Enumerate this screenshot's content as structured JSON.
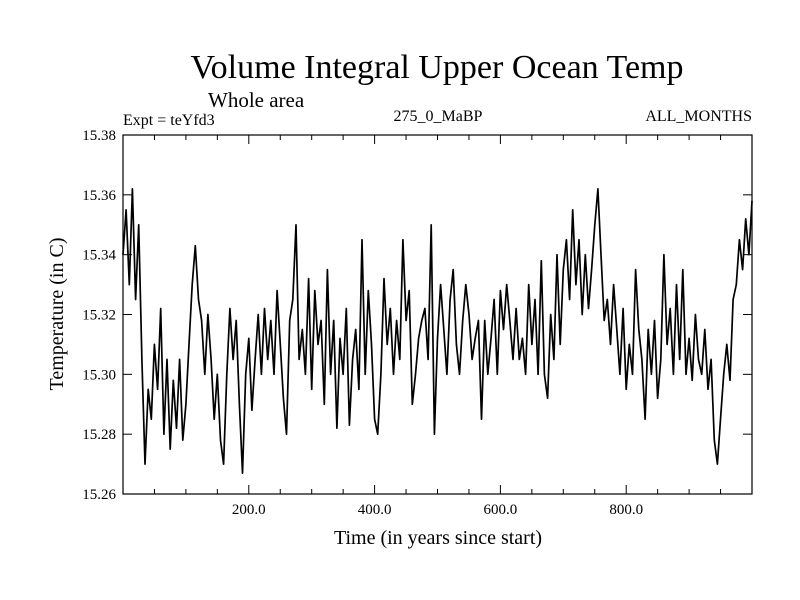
{
  "chart_data": {
    "type": "line",
    "title": "Volume Integral Upper Ocean Temp",
    "subtitle": "Whole area",
    "header_left": "Expt = teYfd3",
    "header_center": "275_0_MaBP",
    "header_right": "ALL_MONTHS",
    "xlabel": "Time (in years since start)",
    "ylabel": "Temperature (in C)",
    "xlim": [
      0,
      1000
    ],
    "ylim": [
      15.26,
      15.38
    ],
    "x_ticks": [
      200,
      400,
      600,
      800
    ],
    "x_tick_labels": [
      "200.0",
      "400.0",
      "600.0",
      "800.0"
    ],
    "y_ticks": [
      15.26,
      15.28,
      15.3,
      15.32,
      15.34,
      15.36,
      15.38
    ],
    "y_tick_labels": [
      "15.26",
      "15.28",
      "15.30",
      "15.32",
      "15.34",
      "15.36",
      "15.38"
    ],
    "grid": false,
    "line_color": "#000000",
    "series": [
      {
        "name": "Volume integral upper ocean temperature",
        "x": [
          0,
          5,
          10,
          15,
          20,
          25,
          30,
          35,
          40,
          45,
          50,
          55,
          60,
          65,
          70,
          75,
          80,
          85,
          90,
          95,
          100,
          105,
          110,
          115,
          120,
          125,
          130,
          135,
          140,
          145,
          150,
          155,
          160,
          165,
          170,
          175,
          180,
          185,
          190,
          195,
          200,
          205,
          210,
          215,
          220,
          225,
          230,
          235,
          240,
          245,
          250,
          255,
          260,
          265,
          270,
          275,
          280,
          285,
          290,
          295,
          300,
          305,
          310,
          315,
          320,
          325,
          330,
          335,
          340,
          345,
          350,
          355,
          360,
          365,
          370,
          375,
          380,
          385,
          390,
          395,
          400,
          405,
          410,
          415,
          420,
          425,
          430,
          435,
          440,
          445,
          450,
          455,
          460,
          465,
          470,
          475,
          480,
          485,
          490,
          495,
          500,
          505,
          510,
          515,
          520,
          525,
          530,
          535,
          540,
          545,
          550,
          555,
          560,
          565,
          570,
          575,
          580,
          585,
          590,
          595,
          600,
          605,
          610,
          615,
          620,
          625,
          630,
          635,
          640,
          645,
          650,
          655,
          660,
          665,
          670,
          675,
          680,
          685,
          690,
          695,
          700,
          705,
          710,
          715,
          720,
          725,
          730,
          735,
          740,
          745,
          750,
          755,
          760,
          765,
          770,
          775,
          780,
          785,
          790,
          795,
          800,
          805,
          810,
          815,
          820,
          825,
          830,
          835,
          840,
          845,
          850,
          855,
          860,
          865,
          870,
          875,
          880,
          885,
          890,
          895,
          900,
          905,
          910,
          915,
          920,
          925,
          930,
          935,
          940,
          945,
          950,
          955,
          960,
          965,
          970,
          975,
          980,
          985,
          990,
          995,
          1000
        ],
        "values": [
          15.34,
          15.355,
          15.33,
          15.362,
          15.325,
          15.35,
          15.305,
          15.27,
          15.295,
          15.285,
          15.31,
          15.295,
          15.322,
          15.28,
          15.305,
          15.275,
          15.298,
          15.282,
          15.305,
          15.278,
          15.29,
          15.31,
          15.33,
          15.343,
          15.325,
          15.318,
          15.3,
          15.32,
          15.305,
          15.285,
          15.3,
          15.278,
          15.27,
          15.3,
          15.322,
          15.305,
          15.318,
          15.29,
          15.267,
          15.3,
          15.312,
          15.288,
          15.305,
          15.32,
          15.3,
          15.322,
          15.305,
          15.318,
          15.3,
          15.328,
          15.31,
          15.292,
          15.28,
          15.318,
          15.325,
          15.35,
          15.305,
          15.315,
          15.3,
          15.332,
          15.295,
          15.328,
          15.31,
          15.318,
          15.29,
          15.335,
          15.3,
          15.318,
          15.282,
          15.312,
          15.3,
          15.322,
          15.283,
          15.305,
          15.315,
          15.295,
          15.345,
          15.3,
          15.328,
          15.31,
          15.285,
          15.28,
          15.3,
          15.332,
          15.31,
          15.322,
          15.3,
          15.318,
          15.305,
          15.345,
          15.318,
          15.328,
          15.29,
          15.3,
          15.312,
          15.318,
          15.322,
          15.305,
          15.35,
          15.28,
          15.312,
          15.33,
          15.315,
          15.3,
          15.325,
          15.335,
          15.31,
          15.3,
          15.318,
          15.33,
          15.32,
          15.305,
          15.312,
          15.318,
          15.285,
          15.318,
          15.3,
          15.312,
          15.325,
          15.3,
          15.328,
          15.315,
          15.33,
          15.318,
          15.305,
          15.322,
          15.305,
          15.312,
          15.3,
          15.33,
          15.31,
          15.325,
          15.3,
          15.338,
          15.3,
          15.292,
          15.32,
          15.305,
          15.34,
          15.31,
          15.335,
          15.345,
          15.325,
          15.355,
          15.33,
          15.345,
          15.32,
          15.34,
          15.322,
          15.335,
          15.35,
          15.362,
          15.34,
          15.318,
          15.325,
          15.31,
          15.33,
          15.315,
          15.3,
          15.322,
          15.295,
          15.31,
          15.3,
          15.335,
          15.315,
          15.305,
          15.285,
          15.315,
          15.3,
          15.318,
          15.292,
          15.305,
          15.34,
          15.31,
          15.322,
          15.3,
          15.33,
          15.305,
          15.335,
          15.3,
          15.312,
          15.298,
          15.32,
          15.305,
          15.3,
          15.315,
          15.295,
          15.305,
          15.278,
          15.27,
          15.285,
          15.3,
          15.31,
          15.298,
          15.325,
          15.33,
          15.345,
          15.335,
          15.352,
          15.34,
          15.358
        ]
      }
    ]
  }
}
